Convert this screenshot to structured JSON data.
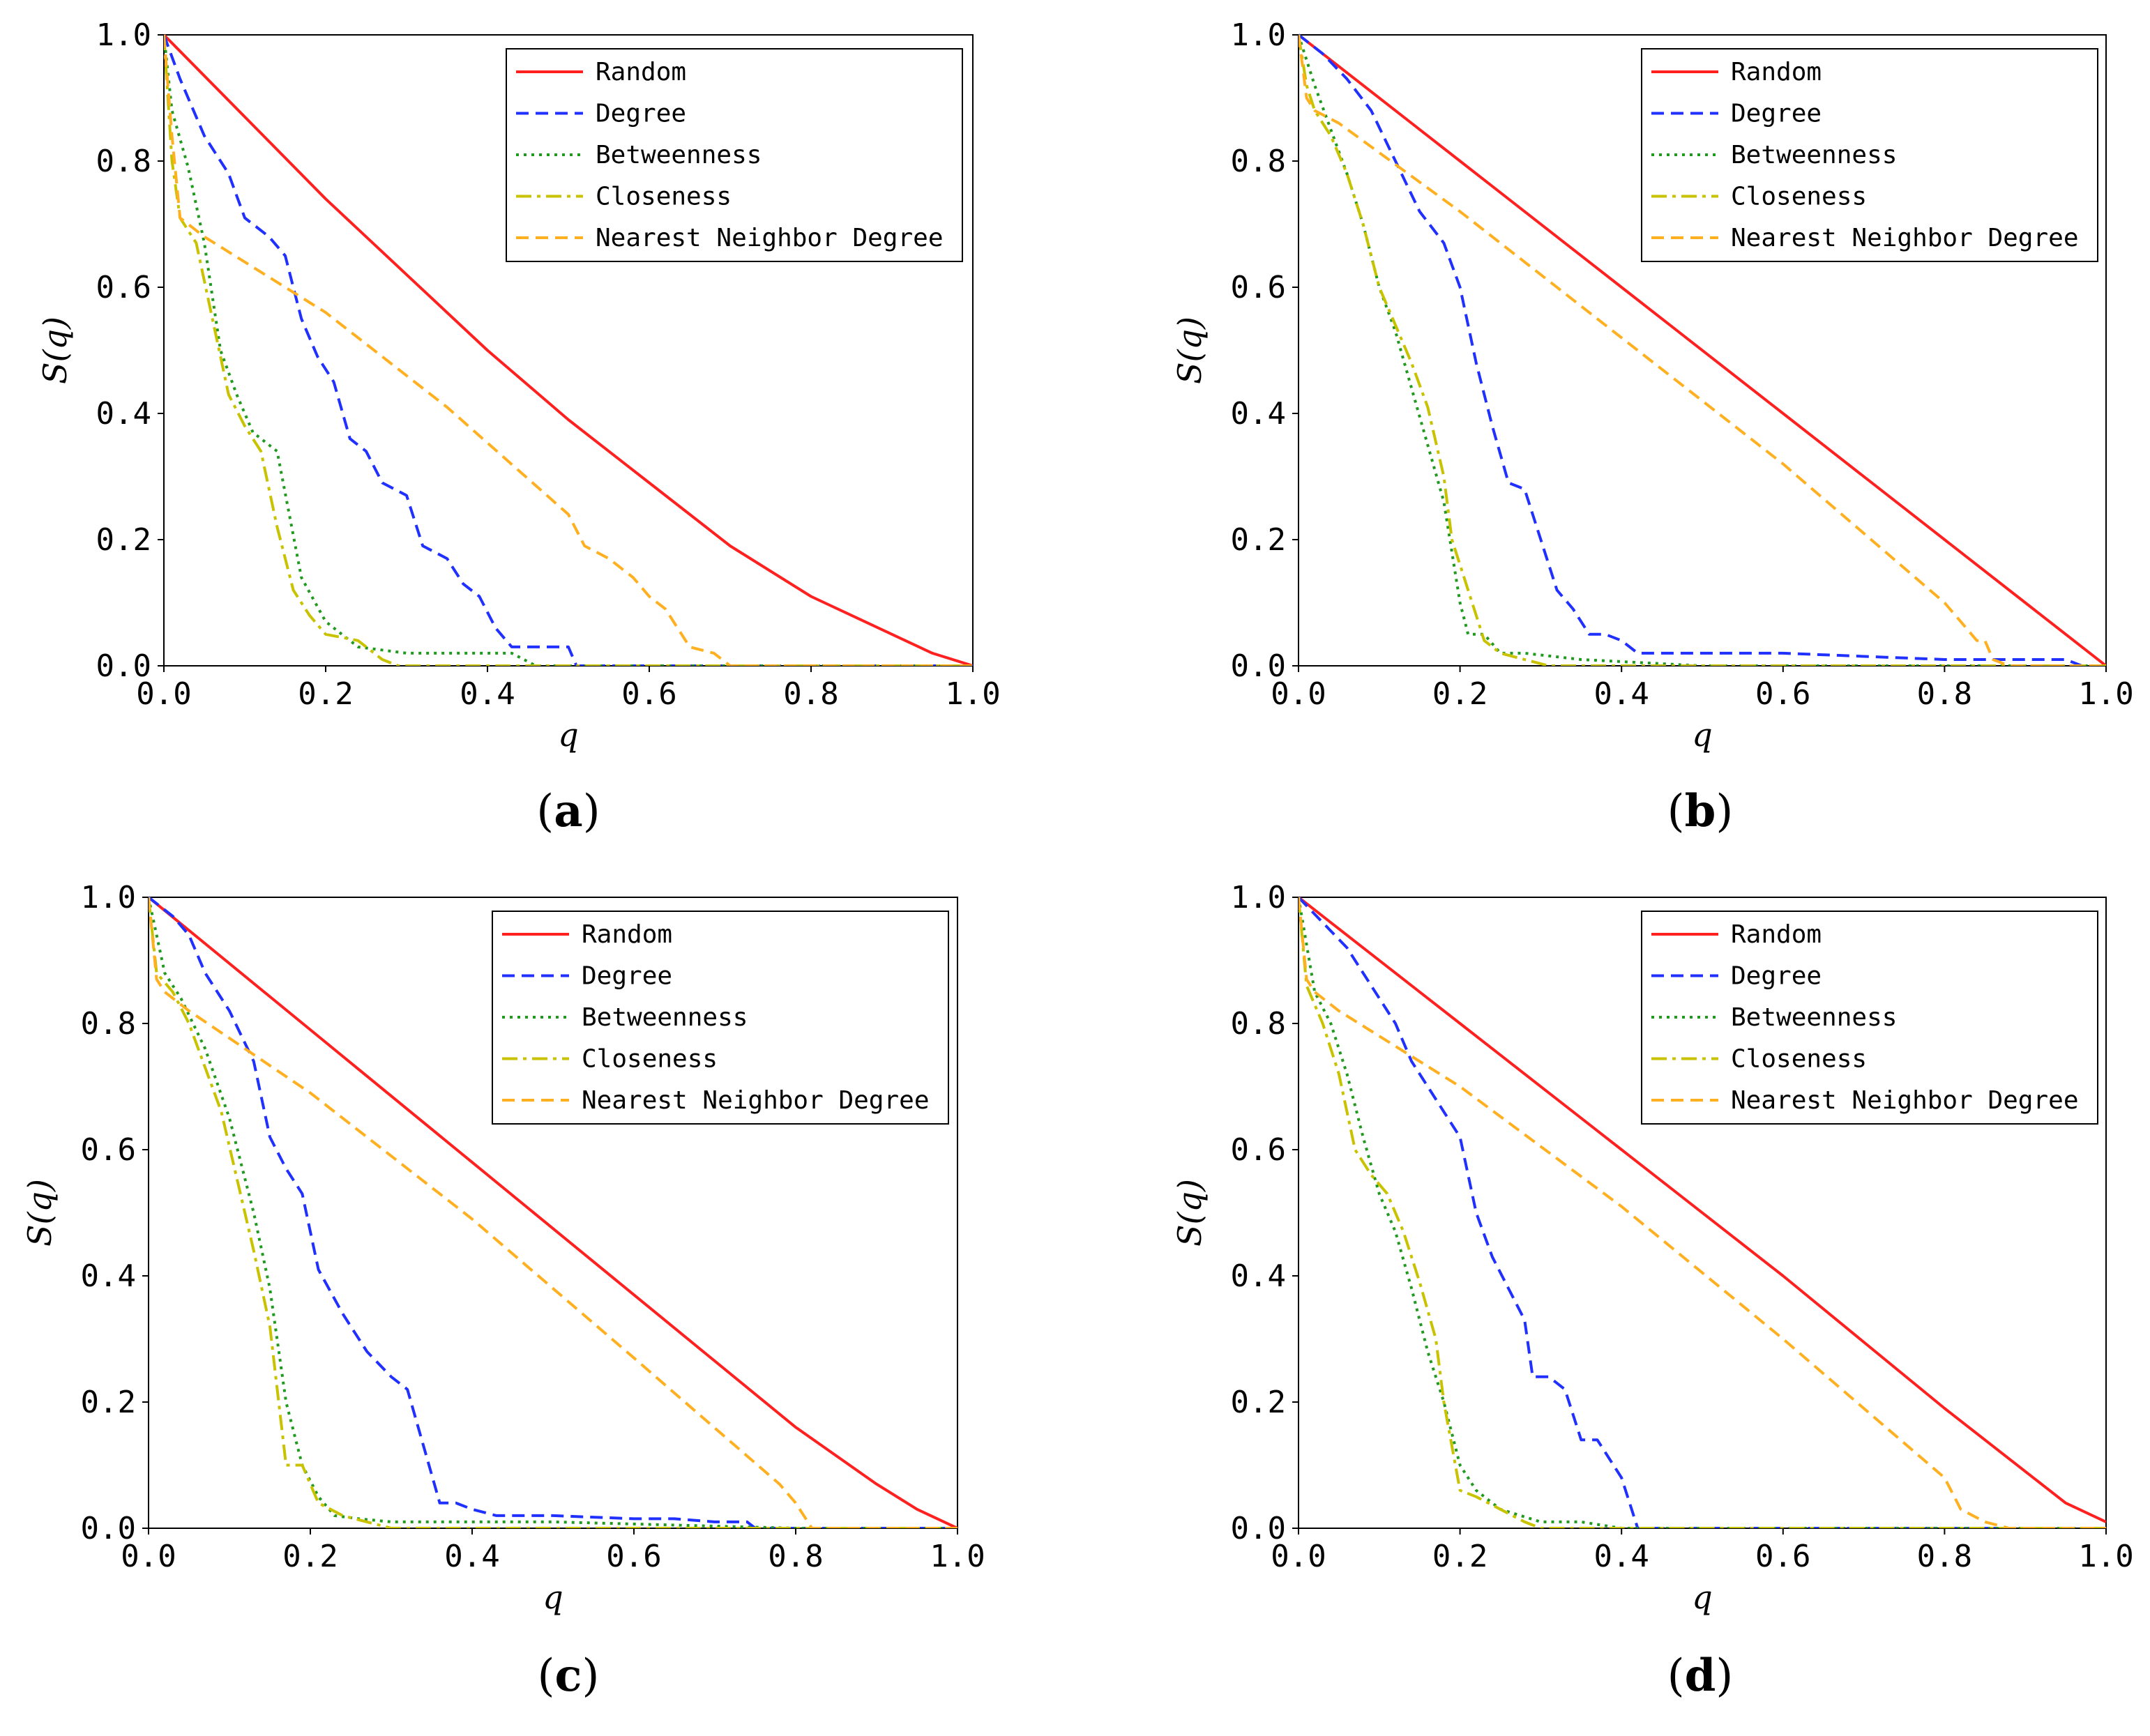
{
  "chart_data": [
    {
      "type": "line",
      "caption": "a",
      "xlabel": "q",
      "ylabel": "S(q)",
      "xlim": [
        0,
        1
      ],
      "ylim": [
        0,
        1
      ],
      "xticks": [
        "0.0",
        "0.2",
        "0.4",
        "0.6",
        "0.8",
        "1.0"
      ],
      "yticks": [
        "0.0",
        "0.2",
        "0.4",
        "0.6",
        "0.8",
        "1.0"
      ],
      "legend_position": "top-right",
      "series": [
        {
          "name": "Random",
          "color": "#ff2020",
          "style": "solid",
          "x": [
            0,
            0.1,
            0.2,
            0.3,
            0.4,
            0.5,
            0.6,
            0.7,
            0.8,
            0.9,
            0.95,
            1.0
          ],
          "y": [
            1.0,
            0.87,
            0.74,
            0.62,
            0.5,
            0.39,
            0.29,
            0.19,
            0.11,
            0.05,
            0.02,
            0.0
          ]
        },
        {
          "name": "Degree",
          "color": "#2030ff",
          "style": "dashed",
          "x": [
            0,
            0.02,
            0.05,
            0.08,
            0.1,
            0.13,
            0.15,
            0.17,
            0.19,
            0.21,
            0.23,
            0.25,
            0.27,
            0.3,
            0.32,
            0.35,
            0.37,
            0.39,
            0.41,
            0.43,
            0.5,
            0.51,
            0.55,
            1.0
          ],
          "y": [
            1.0,
            0.93,
            0.84,
            0.78,
            0.71,
            0.68,
            0.65,
            0.55,
            0.49,
            0.45,
            0.36,
            0.34,
            0.29,
            0.27,
            0.19,
            0.17,
            0.13,
            0.11,
            0.06,
            0.03,
            0.03,
            0.0,
            0.0,
            0.0
          ]
        },
        {
          "name": "Betweenness",
          "color": "#1f9a1f",
          "style": "dotted",
          "x": [
            0,
            0.01,
            0.03,
            0.05,
            0.07,
            0.09,
            0.11,
            0.14,
            0.17,
            0.2,
            0.24,
            0.3,
            0.38,
            0.43,
            0.46,
            0.5,
            1.0
          ],
          "y": [
            1.0,
            0.88,
            0.79,
            0.67,
            0.5,
            0.43,
            0.37,
            0.34,
            0.14,
            0.07,
            0.03,
            0.02,
            0.02,
            0.02,
            0.0,
            0.0,
            0.0
          ]
        },
        {
          "name": "Closeness",
          "color": "#c9c200",
          "style": "dashdot",
          "x": [
            0,
            0.01,
            0.02,
            0.04,
            0.06,
            0.08,
            0.1,
            0.12,
            0.14,
            0.16,
            0.18,
            0.2,
            0.24,
            0.27,
            0.29,
            0.35,
            1.0
          ],
          "y": [
            1.0,
            0.8,
            0.71,
            0.67,
            0.55,
            0.43,
            0.38,
            0.34,
            0.22,
            0.12,
            0.08,
            0.05,
            0.04,
            0.01,
            0.0,
            0.0,
            0.0
          ]
        },
        {
          "name": "Nearest Neighbor Degree",
          "color": "#ffb020",
          "style": "dashed",
          "x": [
            0,
            0.01,
            0.02,
            0.05,
            0.2,
            0.35,
            0.5,
            0.52,
            0.55,
            0.58,
            0.6,
            0.62,
            0.64,
            0.65,
            0.68,
            0.7,
            1.0
          ],
          "y": [
            1.0,
            0.84,
            0.71,
            0.68,
            0.56,
            0.41,
            0.24,
            0.19,
            0.17,
            0.14,
            0.11,
            0.09,
            0.05,
            0.03,
            0.02,
            0.0,
            0.0
          ]
        }
      ]
    },
    {
      "type": "line",
      "caption": "b",
      "xlabel": "q",
      "ylabel": "S(q)",
      "xlim": [
        0,
        1
      ],
      "ylim": [
        0,
        1
      ],
      "xticks": [
        "0.0",
        "0.2",
        "0.4",
        "0.6",
        "0.8",
        "1.0"
      ],
      "yticks": [
        "0.0",
        "0.2",
        "0.4",
        "0.6",
        "0.8",
        "1.0"
      ],
      "legend_position": "top-right",
      "series": [
        {
          "name": "Random",
          "color": "#ff2020",
          "style": "solid",
          "x": [
            0,
            0.2,
            0.4,
            0.6,
            0.8,
            0.9,
            1.0
          ],
          "y": [
            1.0,
            0.8,
            0.6,
            0.4,
            0.2,
            0.1,
            0.0
          ]
        },
        {
          "name": "Degree",
          "color": "#2030ff",
          "style": "dashed",
          "x": [
            0,
            0.03,
            0.06,
            0.09,
            0.12,
            0.15,
            0.18,
            0.2,
            0.22,
            0.24,
            0.26,
            0.28,
            0.3,
            0.32,
            0.34,
            0.36,
            0.38,
            0.4,
            0.42,
            0.6,
            0.8,
            0.95,
            0.97,
            1.0
          ],
          "y": [
            1.0,
            0.97,
            0.93,
            0.88,
            0.8,
            0.72,
            0.67,
            0.6,
            0.48,
            0.38,
            0.29,
            0.28,
            0.2,
            0.12,
            0.09,
            0.05,
            0.05,
            0.04,
            0.02,
            0.02,
            0.01,
            0.01,
            0.0,
            0.0
          ]
        },
        {
          "name": "Betweenness",
          "color": "#1f9a1f",
          "style": "dotted",
          "x": [
            0,
            0.02,
            0.04,
            0.06,
            0.08,
            0.1,
            0.12,
            0.14,
            0.16,
            0.18,
            0.2,
            0.21,
            0.23,
            0.25,
            0.28,
            0.35,
            0.5,
            1.0
          ],
          "y": [
            1.0,
            0.92,
            0.85,
            0.78,
            0.7,
            0.6,
            0.53,
            0.44,
            0.35,
            0.26,
            0.1,
            0.05,
            0.05,
            0.02,
            0.02,
            0.01,
            0.0,
            0.0
          ]
        },
        {
          "name": "Closeness",
          "color": "#c9c200",
          "style": "dashdot",
          "x": [
            0,
            0.01,
            0.02,
            0.04,
            0.06,
            0.08,
            0.1,
            0.12,
            0.14,
            0.16,
            0.18,
            0.19,
            0.2,
            0.22,
            0.23,
            0.25,
            0.28,
            0.31,
            1.0
          ],
          "y": [
            1.0,
            0.92,
            0.88,
            0.84,
            0.78,
            0.7,
            0.6,
            0.54,
            0.48,
            0.41,
            0.3,
            0.2,
            0.16,
            0.08,
            0.04,
            0.02,
            0.01,
            0.0,
            0.0
          ]
        },
        {
          "name": "Nearest Neighbor Degree",
          "color": "#ffb020",
          "style": "dashed",
          "x": [
            0,
            0.01,
            0.02,
            0.05,
            0.2,
            0.4,
            0.6,
            0.8,
            0.82,
            0.84,
            0.85,
            0.86,
            0.88,
            1.0
          ],
          "y": [
            1.0,
            0.9,
            0.88,
            0.86,
            0.72,
            0.52,
            0.32,
            0.1,
            0.07,
            0.04,
            0.04,
            0.01,
            0.0,
            0.0
          ]
        }
      ]
    },
    {
      "type": "line",
      "caption": "c",
      "xlabel": "q",
      "ylabel": "S(q)",
      "xlim": [
        0,
        1
      ],
      "ylim": [
        0,
        1
      ],
      "xticks": [
        "0.0",
        "0.2",
        "0.4",
        "0.6",
        "0.8",
        "1.0"
      ],
      "yticks": [
        "0.0",
        "0.2",
        "0.4",
        "0.6",
        "0.8",
        "1.0"
      ],
      "legend_position": "top-right",
      "series": [
        {
          "name": "Random",
          "color": "#ff2020",
          "style": "solid",
          "x": [
            0,
            0.2,
            0.4,
            0.6,
            0.8,
            0.9,
            0.95,
            1.0
          ],
          "y": [
            1.0,
            0.79,
            0.58,
            0.37,
            0.16,
            0.07,
            0.03,
            0.0
          ]
        },
        {
          "name": "Degree",
          "color": "#2030ff",
          "style": "dashed",
          "x": [
            0,
            0.03,
            0.05,
            0.07,
            0.1,
            0.13,
            0.15,
            0.17,
            0.19,
            0.21,
            0.24,
            0.27,
            0.3,
            0.32,
            0.34,
            0.36,
            0.38,
            0.4,
            0.43,
            0.5,
            0.6,
            0.65,
            0.7,
            0.74,
            0.75,
            1.0
          ],
          "y": [
            1.0,
            0.97,
            0.94,
            0.88,
            0.82,
            0.74,
            0.62,
            0.57,
            0.53,
            0.41,
            0.34,
            0.28,
            0.24,
            0.22,
            0.13,
            0.04,
            0.04,
            0.03,
            0.02,
            0.02,
            0.015,
            0.015,
            0.01,
            0.01,
            0.0,
            0.0
          ]
        },
        {
          "name": "Betweenness",
          "color": "#1f9a1f",
          "style": "dotted",
          "x": [
            0,
            0.02,
            0.04,
            0.07,
            0.1,
            0.13,
            0.15,
            0.17,
            0.19,
            0.21,
            0.23,
            0.26,
            0.3,
            0.5,
            0.8,
            1.0
          ],
          "y": [
            1.0,
            0.88,
            0.84,
            0.76,
            0.65,
            0.5,
            0.38,
            0.2,
            0.1,
            0.05,
            0.02,
            0.015,
            0.01,
            0.01,
            0.0,
            0.0
          ]
        },
        {
          "name": "Closeness",
          "color": "#c9c200",
          "style": "dashdot",
          "x": [
            0,
            0.01,
            0.03,
            0.05,
            0.07,
            0.09,
            0.11,
            0.13,
            0.15,
            0.17,
            0.19,
            0.21,
            0.24,
            0.3,
            1.0
          ],
          "y": [
            1.0,
            0.88,
            0.85,
            0.8,
            0.73,
            0.66,
            0.55,
            0.44,
            0.32,
            0.1,
            0.1,
            0.04,
            0.02,
            0.0,
            0.0
          ]
        },
        {
          "name": "Nearest Neighbor Degree",
          "color": "#ffb020",
          "style": "dashed",
          "x": [
            0,
            0.01,
            0.02,
            0.05,
            0.2,
            0.4,
            0.6,
            0.78,
            0.8,
            0.82,
            0.85,
            1.0
          ],
          "y": [
            1.0,
            0.87,
            0.85,
            0.82,
            0.69,
            0.49,
            0.27,
            0.07,
            0.04,
            0.0,
            0.0,
            0.0
          ]
        }
      ]
    },
    {
      "type": "line",
      "caption": "d",
      "xlabel": "q",
      "ylabel": "S(q)",
      "xlim": [
        0,
        1
      ],
      "ylim": [
        0,
        1
      ],
      "xticks": [
        "0.0",
        "0.2",
        "0.4",
        "0.6",
        "0.8",
        "1.0"
      ],
      "yticks": [
        "0.0",
        "0.2",
        "0.4",
        "0.6",
        "0.8",
        "1.0"
      ],
      "legend_position": "top-right",
      "series": [
        {
          "name": "Random",
          "color": "#ff2020",
          "style": "solid",
          "x": [
            0,
            0.2,
            0.4,
            0.6,
            0.8,
            0.9,
            0.95,
            1.0
          ],
          "y": [
            1.0,
            0.8,
            0.6,
            0.4,
            0.19,
            0.09,
            0.04,
            0.01
          ]
        },
        {
          "name": "Degree",
          "color": "#2030ff",
          "style": "dashed",
          "x": [
            0,
            0.03,
            0.06,
            0.09,
            0.12,
            0.14,
            0.16,
            0.18,
            0.2,
            0.22,
            0.24,
            0.26,
            0.28,
            0.29,
            0.31,
            0.33,
            0.35,
            0.37,
            0.4,
            0.42,
            0.43,
            1.0
          ],
          "y": [
            1.0,
            0.96,
            0.92,
            0.86,
            0.8,
            0.74,
            0.7,
            0.66,
            0.62,
            0.5,
            0.43,
            0.38,
            0.33,
            0.24,
            0.24,
            0.22,
            0.14,
            0.14,
            0.08,
            0.0,
            0.0,
            0.0
          ]
        },
        {
          "name": "Betweenness",
          "color": "#1f9a1f",
          "style": "dotted",
          "x": [
            0,
            0.02,
            0.04,
            0.06,
            0.08,
            0.1,
            0.12,
            0.14,
            0.16,
            0.18,
            0.2,
            0.22,
            0.25,
            0.3,
            0.35,
            0.4,
            1.0
          ],
          "y": [
            1.0,
            0.85,
            0.8,
            0.72,
            0.62,
            0.53,
            0.47,
            0.38,
            0.28,
            0.2,
            0.1,
            0.06,
            0.03,
            0.01,
            0.01,
            0.0,
            0.0
          ]
        },
        {
          "name": "Closeness",
          "color": "#c9c200",
          "style": "dashdot",
          "x": [
            0,
            0.01,
            0.03,
            0.05,
            0.07,
            0.09,
            0.11,
            0.13,
            0.15,
            0.17,
            0.18,
            0.2,
            0.22,
            0.25,
            0.28,
            0.3,
            1.0
          ],
          "y": [
            1.0,
            0.86,
            0.8,
            0.72,
            0.6,
            0.56,
            0.53,
            0.47,
            0.39,
            0.3,
            0.2,
            0.06,
            0.05,
            0.03,
            0.01,
            0.0,
            0.0
          ]
        },
        {
          "name": "Nearest Neighbor Degree",
          "color": "#ffb020",
          "style": "dashed",
          "x": [
            0,
            0.01,
            0.02,
            0.05,
            0.2,
            0.4,
            0.6,
            0.8,
            0.82,
            0.85,
            0.88,
            1.0
          ],
          "y": [
            1.0,
            0.87,
            0.85,
            0.82,
            0.7,
            0.51,
            0.3,
            0.08,
            0.03,
            0.01,
            0.0,
            0.0
          ]
        }
      ]
    }
  ]
}
